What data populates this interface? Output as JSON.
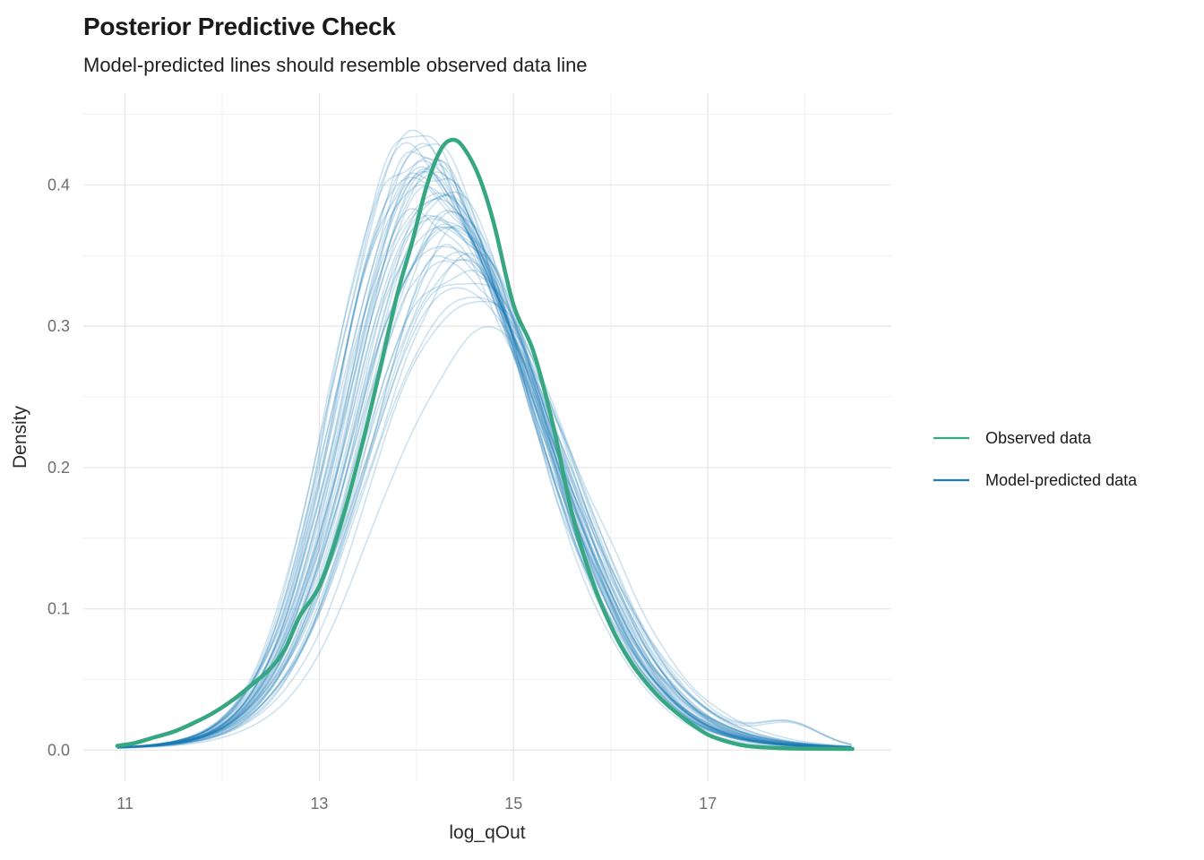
{
  "chart_data": {
    "type": "line",
    "title": "Posterior Predictive Check",
    "subtitle": "Model-predicted lines should resemble observed data line",
    "xlabel": "log_qOut",
    "ylabel": "Density",
    "grid": "on",
    "legend_position": "right",
    "legend": [
      {
        "label": "Observed data",
        "color": "#37a782"
      },
      {
        "label": "Model-predicted data",
        "color": "#1d7cb5"
      }
    ],
    "x_range": [
      10.57,
      18.89
    ],
    "y_range": [
      -0.022,
      0.465
    ],
    "x_ticks": [
      {
        "v": 11,
        "label": "11"
      },
      {
        "v": 13,
        "label": "13"
      },
      {
        "v": 15,
        "label": "15"
      },
      {
        "v": 17,
        "label": "17"
      }
    ],
    "x_minor": [
      12,
      14,
      16,
      18
    ],
    "y_ticks": [
      {
        "v": 0.0,
        "label": "0.0"
      },
      {
        "v": 0.1,
        "label": "0.1"
      },
      {
        "v": 0.2,
        "label": "0.2"
      },
      {
        "v": 0.3,
        "label": "0.3"
      },
      {
        "v": 0.4,
        "label": "0.4"
      }
    ],
    "y_minor": [
      0.05,
      0.15,
      0.25,
      0.35,
      0.45
    ],
    "observed": {
      "name": "Observed data",
      "color": "#37a782",
      "line_width": 4.5,
      "points": [
        [
          10.92,
          0.003
        ],
        [
          11.1,
          0.005
        ],
        [
          11.3,
          0.009
        ],
        [
          11.5,
          0.013
        ],
        [
          11.7,
          0.019
        ],
        [
          11.9,
          0.026
        ],
        [
          12.1,
          0.035
        ],
        [
          12.3,
          0.046
        ],
        [
          12.5,
          0.058
        ],
        [
          12.65,
          0.072
        ],
        [
          12.8,
          0.095
        ],
        [
          13.0,
          0.116
        ],
        [
          13.2,
          0.155
        ],
        [
          13.4,
          0.205
        ],
        [
          13.6,
          0.262
        ],
        [
          13.8,
          0.322
        ],
        [
          13.95,
          0.358
        ],
        [
          14.1,
          0.398
        ],
        [
          14.25,
          0.425
        ],
        [
          14.38,
          0.432
        ],
        [
          14.5,
          0.425
        ],
        [
          14.65,
          0.405
        ],
        [
          14.8,
          0.372
        ],
        [
          15.0,
          0.315
        ],
        [
          15.2,
          0.283
        ],
        [
          15.4,
          0.232
        ],
        [
          15.6,
          0.168
        ],
        [
          15.8,
          0.122
        ],
        [
          16.0,
          0.088
        ],
        [
          16.2,
          0.063
        ],
        [
          16.4,
          0.045
        ],
        [
          16.6,
          0.031
        ],
        [
          16.8,
          0.02
        ],
        [
          17.0,
          0.011
        ],
        [
          17.2,
          0.006
        ],
        [
          17.4,
          0.003
        ],
        [
          17.7,
          0.0015
        ],
        [
          18.0,
          0.001
        ],
        [
          18.49,
          0.0008
        ]
      ]
    },
    "predicted": {
      "name": "Model-predicted data",
      "color": "#1d7cb5",
      "opacity": 0.22,
      "line_width": 1.6,
      "x_data_range": [
        10.92,
        18.5
      ],
      "peak_height_range": [
        0.305,
        0.444
      ],
      "peak_location_range": [
        13.95,
        14.65
      ],
      "n_curves": 48,
      "curves": [
        [
          14.05,
          0.82,
          1.1,
          0.425,
          11,
          0
        ],
        [
          14.32,
          0.88,
          1.05,
          0.4,
          12,
          0
        ],
        [
          14.1,
          0.8,
          1.18,
          0.392,
          13,
          0
        ],
        [
          14.45,
          0.9,
          1.0,
          0.372,
          14,
          0
        ],
        [
          13.98,
          0.78,
          1.12,
          0.441,
          15,
          0
        ],
        [
          14.22,
          0.85,
          1.08,
          0.408,
          16,
          0
        ],
        [
          14.38,
          0.92,
          1.15,
          0.352,
          17,
          1
        ],
        [
          14.15,
          0.84,
          1.02,
          0.415,
          18,
          0
        ],
        [
          14.5,
          0.95,
          1.05,
          0.345,
          19,
          0
        ],
        [
          14.02,
          0.8,
          1.2,
          0.43,
          20,
          0
        ],
        [
          14.28,
          0.87,
          1.1,
          0.385,
          21,
          0
        ],
        [
          14.12,
          0.83,
          1.06,
          0.42,
          22,
          0
        ],
        [
          14.4,
          0.9,
          1.12,
          0.36,
          23,
          0
        ],
        [
          14.08,
          0.79,
          1.15,
          0.435,
          24,
          0
        ],
        [
          14.25,
          0.86,
          1.04,
          0.398,
          25,
          0
        ],
        [
          14.55,
          0.93,
          1.08,
          0.335,
          26,
          1
        ],
        [
          14.18,
          0.82,
          1.1,
          0.412,
          27,
          0
        ],
        [
          13.95,
          0.77,
          1.22,
          0.444,
          28,
          0
        ],
        [
          14.35,
          0.89,
          1.03,
          0.378,
          29,
          0
        ],
        [
          14.06,
          0.81,
          1.14,
          0.428,
          30,
          0
        ],
        [
          14.3,
          0.88,
          1.09,
          0.39,
          31,
          0
        ],
        [
          14.14,
          0.84,
          1.05,
          0.418,
          32,
          0
        ],
        [
          14.48,
          0.91,
          1.16,
          0.348,
          33,
          0
        ],
        [
          14.0,
          0.79,
          1.11,
          0.438,
          34,
          0
        ],
        [
          14.2,
          0.85,
          1.07,
          0.405,
          35,
          0
        ],
        [
          14.42,
          0.92,
          1.02,
          0.358,
          36,
          0
        ],
        [
          14.1,
          0.81,
          1.18,
          0.422,
          37,
          0
        ],
        [
          14.26,
          0.86,
          1.06,
          0.395,
          38,
          0
        ],
        [
          14.52,
          0.94,
          1.1,
          0.34,
          39,
          0
        ],
        [
          14.04,
          0.8,
          1.13,
          0.432,
          40,
          0
        ],
        [
          14.33,
          0.89,
          1.04,
          0.382,
          41,
          0
        ],
        [
          14.16,
          0.83,
          1.09,
          0.41,
          42,
          0
        ],
        [
          14.44,
          0.9,
          1.14,
          0.355,
          43,
          1
        ],
        [
          13.97,
          0.78,
          1.16,
          0.44,
          44,
          0
        ],
        [
          14.23,
          0.86,
          1.05,
          0.4,
          45,
          0
        ],
        [
          14.37,
          0.9,
          1.11,
          0.368,
          46,
          0
        ],
        [
          14.12,
          0.82,
          1.07,
          0.416,
          47,
          0
        ],
        [
          14.29,
          0.87,
          1.12,
          0.388,
          48,
          0
        ],
        [
          14.07,
          0.8,
          1.1,
          0.426,
          49,
          0
        ],
        [
          14.46,
          0.92,
          1.06,
          0.35,
          50,
          0
        ],
        [
          14.19,
          0.84,
          1.08,
          0.402,
          51,
          0
        ],
        [
          14.34,
          0.88,
          1.15,
          0.375,
          52,
          0
        ],
        [
          14.02,
          0.79,
          1.12,
          0.434,
          53,
          0
        ],
        [
          14.24,
          0.85,
          1.03,
          0.396,
          54,
          0
        ],
        [
          14.41,
          0.91,
          1.09,
          0.362,
          55,
          0
        ],
        [
          14.13,
          0.82,
          1.11,
          0.414,
          56,
          0
        ],
        [
          14.31,
          0.87,
          1.07,
          0.386,
          57,
          0
        ],
        [
          14.65,
          0.95,
          1.0,
          0.305,
          58,
          0
        ]
      ]
    },
    "colors": {
      "background": "#ffffff",
      "grid_major": "#e8e8e8",
      "grid_minor": "#f1f1f1",
      "tick_text": "#6e6e6e",
      "title_text": "#1a1a1a"
    }
  }
}
